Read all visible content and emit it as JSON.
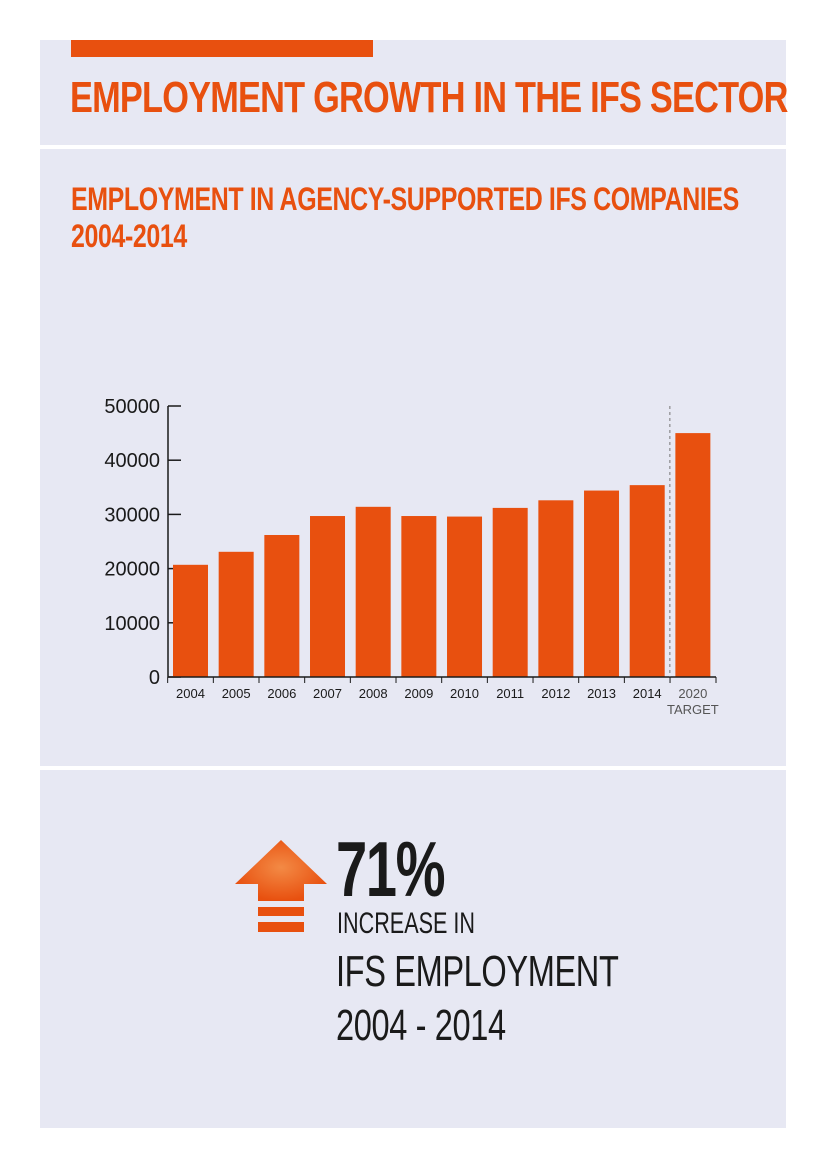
{
  "header": {
    "title": "EMPLOYMENT GROWTH IN THE IFS SECTOR"
  },
  "chart_data": {
    "type": "bar",
    "title_line1": "EMPLOYMENT IN AGENCY-SUPPORTED IFS COMPANIES",
    "title_line2": "2004-2014",
    "xlabel": "",
    "ylabel": "",
    "categories": [
      "2004",
      "2005",
      "2006",
      "2007",
      "2008",
      "2009",
      "2010",
      "2011",
      "2012",
      "2013",
      "2014",
      "2020"
    ],
    "category_sublabels": [
      "",
      "",
      "",
      "",
      "",
      "",
      "",
      "",
      "",
      "",
      "",
      "TARGET"
    ],
    "values": [
      20700,
      23100,
      26200,
      29700,
      31400,
      29700,
      29600,
      31200,
      32600,
      34400,
      35400,
      45000
    ],
    "ylim": [
      0,
      50000
    ],
    "yticks": [
      "50000",
      "40000",
      "30000",
      "20000",
      "10000",
      "0"
    ],
    "grid": false,
    "separator_before": "2020",
    "colors": {
      "bar": "#e8500f",
      "axis": "#1a1a1a",
      "separator": "#777777"
    }
  },
  "stat": {
    "percent": "71%",
    "label": "INCREASE IN",
    "line1": "IFS EMPLOYMENT",
    "line2": "2004 - 2014",
    "icon": "up-arrow-icon"
  },
  "colors": {
    "accent": "#e8500f",
    "panel": "#e7e8f3",
    "text": "#1a1a1a"
  }
}
